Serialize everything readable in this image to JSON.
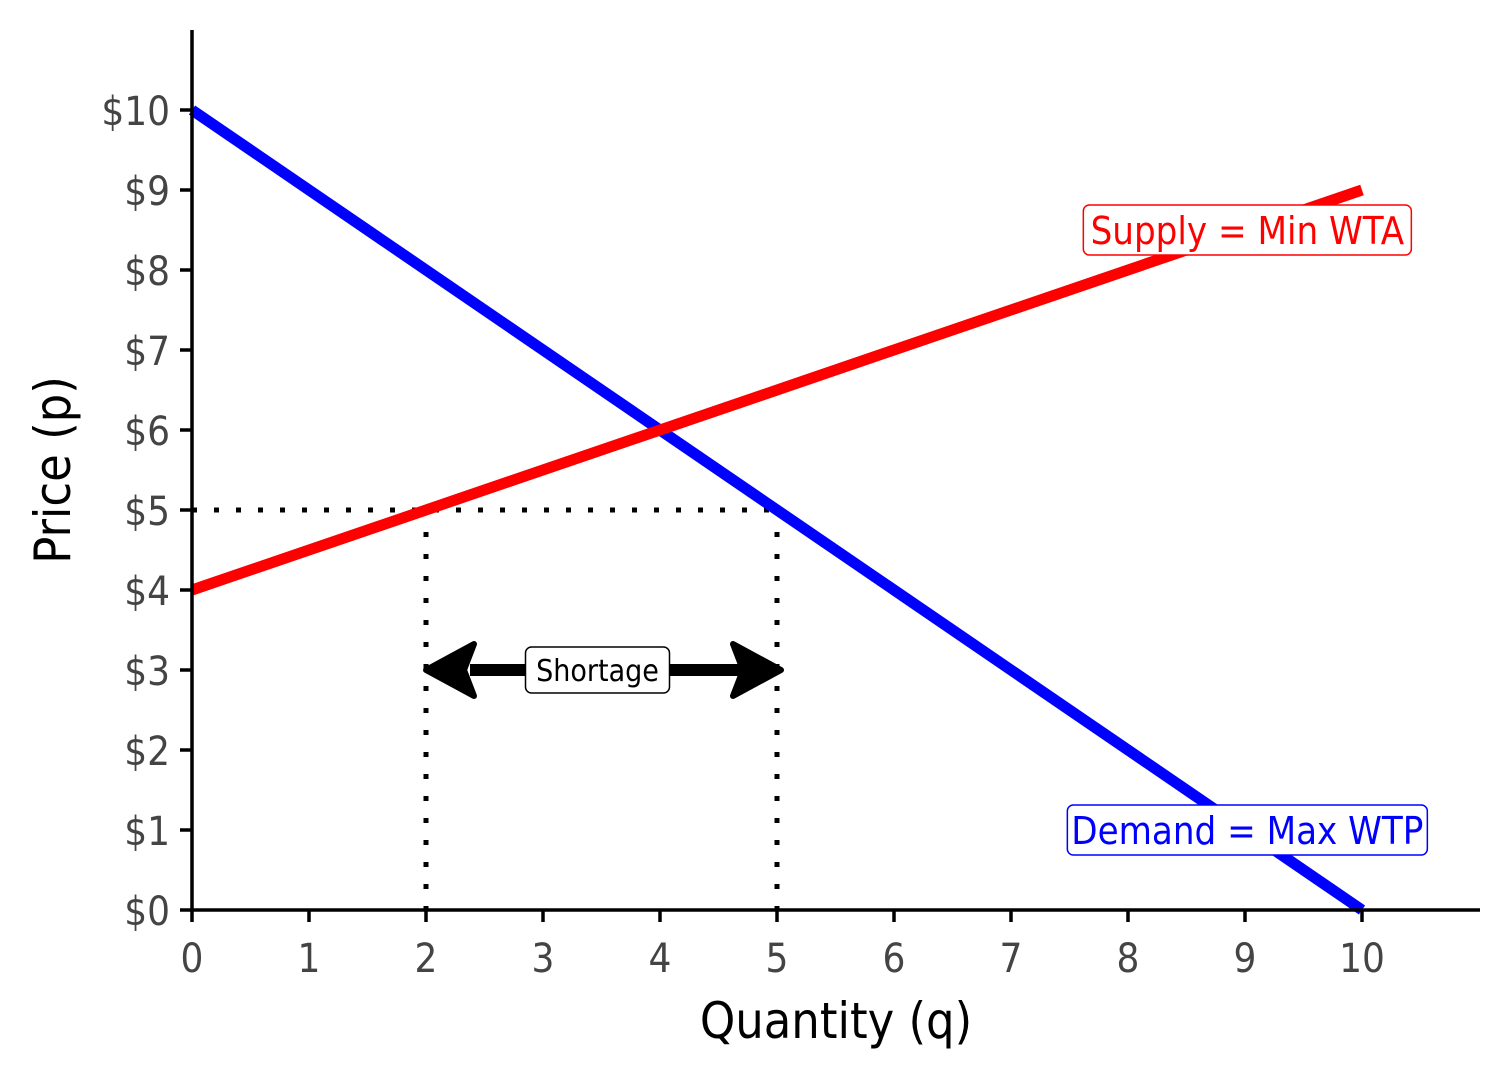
{
  "chart_data": {
    "type": "line",
    "title": "",
    "xlabel": "Quantity (q)",
    "ylabel": "Price (p)",
    "xlim": [
      0,
      11
    ],
    "ylim": [
      0,
      11
    ],
    "x_ticks": [
      0,
      1,
      2,
      3,
      4,
      5,
      6,
      7,
      8,
      9,
      10
    ],
    "x_tick_labels": [
      "0",
      "1",
      "2",
      "3",
      "4",
      "5",
      "6",
      "7",
      "8",
      "9",
      "10"
    ],
    "y_ticks": [
      0,
      1,
      2,
      3,
      4,
      5,
      6,
      7,
      8,
      9,
      10
    ],
    "y_tick_labels": [
      "$0",
      "$1",
      "$2",
      "$3",
      "$4",
      "$5",
      "$6",
      "$7",
      "$8",
      "$9",
      "$10"
    ],
    "grid": false,
    "series": [
      {
        "name": "Demand = Max WTP",
        "color": "#0000FF",
        "x": [
          0,
          10
        ],
        "y": [
          10,
          0
        ],
        "label_at": [
          9.02,
          1
        ]
      },
      {
        "name": "Supply = Min WTA",
        "color": "#FF0000",
        "x": [
          0,
          10
        ],
        "y": [
          4,
          9
        ],
        "label_at": [
          9.02,
          8.5
        ]
      }
    ],
    "price_ceiling": 5,
    "quantity_supplied": 2,
    "quantity_demanded": 5,
    "annotation": {
      "text": "Shortage",
      "x_from": 2,
      "x_to": 5,
      "y": 3
    }
  }
}
